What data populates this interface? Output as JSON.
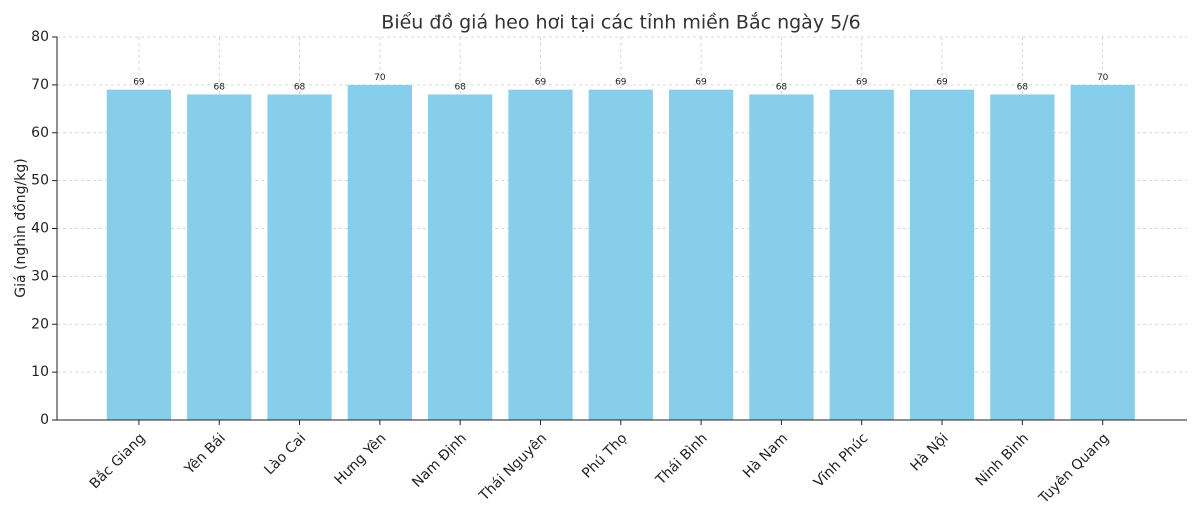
{
  "chart_data": {
    "type": "bar",
    "title": "Biểu đồ giá heo hơi tại các tỉnh miền Bắc ngày 5/6",
    "y_label": "Giá (nghìn đồng/kg)",
    "categories": [
      "Bắc Giang",
      "Yên Bái",
      "Lào Cai",
      "Hưng Yên",
      "Nam Định",
      "Thái Nguyên",
      "Phú Thọ",
      "Thái Bình",
      "Hà Nam",
      "Vĩnh Phúc",
      "Hà Nội",
      "Ninh Bình",
      "Tuyên Quang"
    ],
    "values": [
      69,
      68,
      68,
      70,
      68,
      69,
      69,
      69,
      68,
      69,
      69,
      68,
      70
    ],
    "color": "#87ceeb",
    "ylim": [
      0,
      80
    ],
    "yticks": [
      0,
      10,
      20,
      30,
      40,
      50,
      60,
      70,
      80
    ],
    "grid": true
  }
}
